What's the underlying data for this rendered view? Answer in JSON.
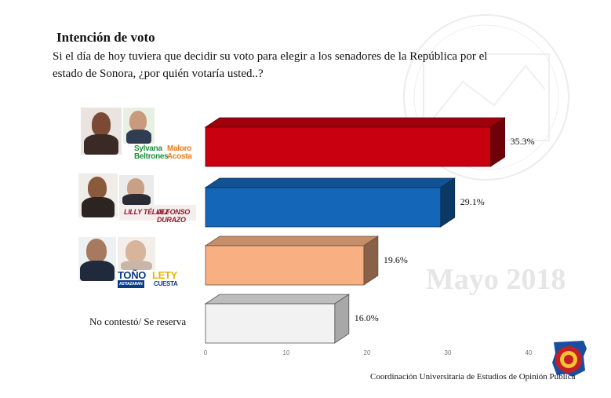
{
  "title": "Intención de voto",
  "question": "Si el día de hoy tuviera que decidir su voto para elegir a los senadores de la República por el estado de Sonora, ¿por quién votaría usted..?",
  "watermark": "Mayo 2018",
  "footer": "Coordinación Universitaria de Estudios de Opinión Pública",
  "candidates": [
    {
      "name1_line1": "Sylvana",
      "name1_line2": "Beltrones",
      "name2_line1": "Maloro",
      "name2_line2": "Acosta"
    },
    {
      "name1": "LILLY TÉLLEZ",
      "name2": "ALFONSO DURAZO"
    },
    {
      "name1": "TOÑO",
      "name1_sub": "ASTIAZARAN",
      "name2": "LETY",
      "name2_sub": "CUESTA"
    }
  ],
  "no_answer_label": "No contestó/ Se reserva",
  "chart_data": {
    "type": "bar",
    "orientation": "horizontal",
    "categories": [
      "Sylvana Beltrones / Maloro Acosta",
      "Lilly Téllez / Alfonso Durazo",
      "Toño Astiazarán / Lety Cuesta",
      "No contestó/ Se reserva"
    ],
    "values": [
      35.3,
      29.1,
      19.6,
      16.0
    ],
    "value_labels": [
      "35.3%",
      "29.1%",
      "19.6%",
      "16.0%"
    ],
    "colors": [
      "#c8000f",
      "#1466b8",
      "#f8b083",
      "#f0f0f0"
    ],
    "xlim": [
      0,
      40
    ],
    "xticks": [
      0,
      10,
      20,
      30,
      40
    ],
    "style": "3d"
  }
}
